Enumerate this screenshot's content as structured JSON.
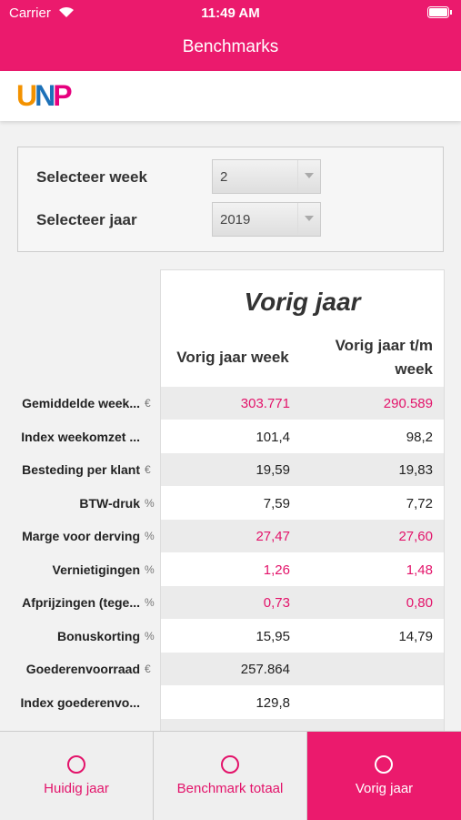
{
  "status_bar": {
    "carrier": "Carrier",
    "time": "11:49 AM"
  },
  "header": {
    "title": "Benchmarks"
  },
  "logo": "UNP",
  "selectors": [
    {
      "label": "Selecteer week",
      "value": "2"
    },
    {
      "label": "Selecteer jaar",
      "value": "2019"
    }
  ],
  "table": {
    "title": "Vorig jaar",
    "columns": [
      "Vorig jaar week",
      "Vorig jaar t/m week"
    ],
    "rows": [
      {
        "label": "Gemiddelde week...",
        "unit": "€",
        "week": "303.771",
        "ytd": "290.589",
        "highlight": true
      },
      {
        "label": "Index weekomzet ...",
        "week": "101,4",
        "ytd": "98,2"
      },
      {
        "label": "Besteding per klant",
        "unit": "€",
        "week": "19,59",
        "ytd": "19,83"
      },
      {
        "label": "BTW-druk",
        "unit": "%",
        "week": "7,59",
        "ytd": "7,72"
      },
      {
        "label": "Marge voor derving",
        "unit": "%",
        "week": "27,47",
        "ytd": "27,60",
        "highlight": true
      },
      {
        "label": "Vernietigingen",
        "unit": "%",
        "week": "1,26",
        "ytd": "1,48",
        "highlight": true
      },
      {
        "label": "Afprijzingen (tege...",
        "unit": "%",
        "week": "0,73",
        "ytd": "0,80",
        "highlight": true
      },
      {
        "label": "Bonuskorting",
        "unit": "%",
        "week": "15,95",
        "ytd": "14,79"
      },
      {
        "label": "Goederenvoorraad",
        "unit": "€",
        "week": "257.864"
      },
      {
        "label": "Index goederenvo...",
        "week": "129,8"
      }
    ]
  },
  "tabs": [
    {
      "label": "Huidig jaar"
    },
    {
      "label": "Benchmark totaal"
    },
    {
      "label": "Vorig jaar",
      "active": true
    }
  ]
}
